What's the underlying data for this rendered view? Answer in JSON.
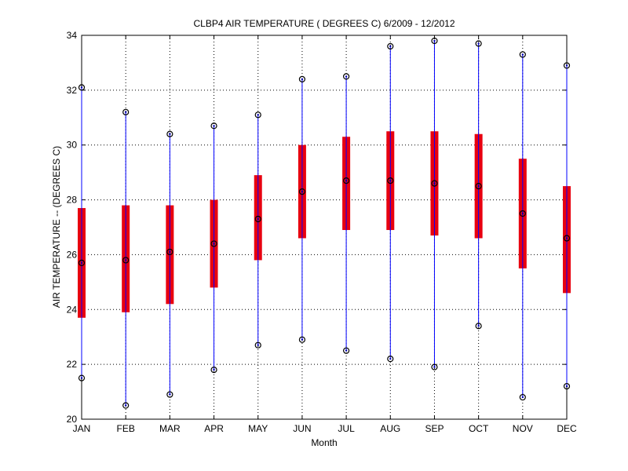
{
  "chart_data": {
    "type": "box",
    "title": "CLBP4  AIR TEMPERATURE ( DEGREES C) 6/2009 - 12/2012",
    "xlabel": "Month",
    "ylabel": "AIR TEMPERATURE -- (DEGREES C)",
    "ylim": [
      20,
      34
    ],
    "yticks": [
      20,
      22,
      24,
      26,
      28,
      30,
      32,
      34
    ],
    "grid": true,
    "categories": [
      "JAN",
      "FEB",
      "MAR",
      "APR",
      "MAY",
      "JUN",
      "JUL",
      "AUG",
      "SEP",
      "OCT",
      "NOV",
      "DEC"
    ],
    "min": [
      21.5,
      20.5,
      20.9,
      21.8,
      22.7,
      22.9,
      22.5,
      22.2,
      21.9,
      23.4,
      20.8,
      21.2
    ],
    "q1": [
      23.7,
      23.9,
      24.2,
      24.8,
      25.8,
      26.6,
      26.9,
      26.9,
      26.7,
      26.6,
      25.5,
      24.6
    ],
    "median": [
      25.7,
      25.8,
      26.1,
      26.4,
      27.3,
      28.3,
      28.7,
      28.7,
      28.6,
      28.5,
      27.5,
      26.6
    ],
    "q3": [
      27.7,
      27.8,
      27.8,
      28.0,
      28.9,
      30.0,
      30.3,
      30.5,
      30.5,
      30.4,
      29.5,
      28.5
    ],
    "max": [
      32.1,
      31.2,
      30.4,
      30.7,
      31.1,
      32.4,
      32.5,
      33.6,
      33.8,
      33.7,
      33.3,
      32.9
    ],
    "colors": {
      "whisker": "#0000ff",
      "box": "#e8000f",
      "marker": "#000000",
      "grid": "#000000"
    }
  }
}
